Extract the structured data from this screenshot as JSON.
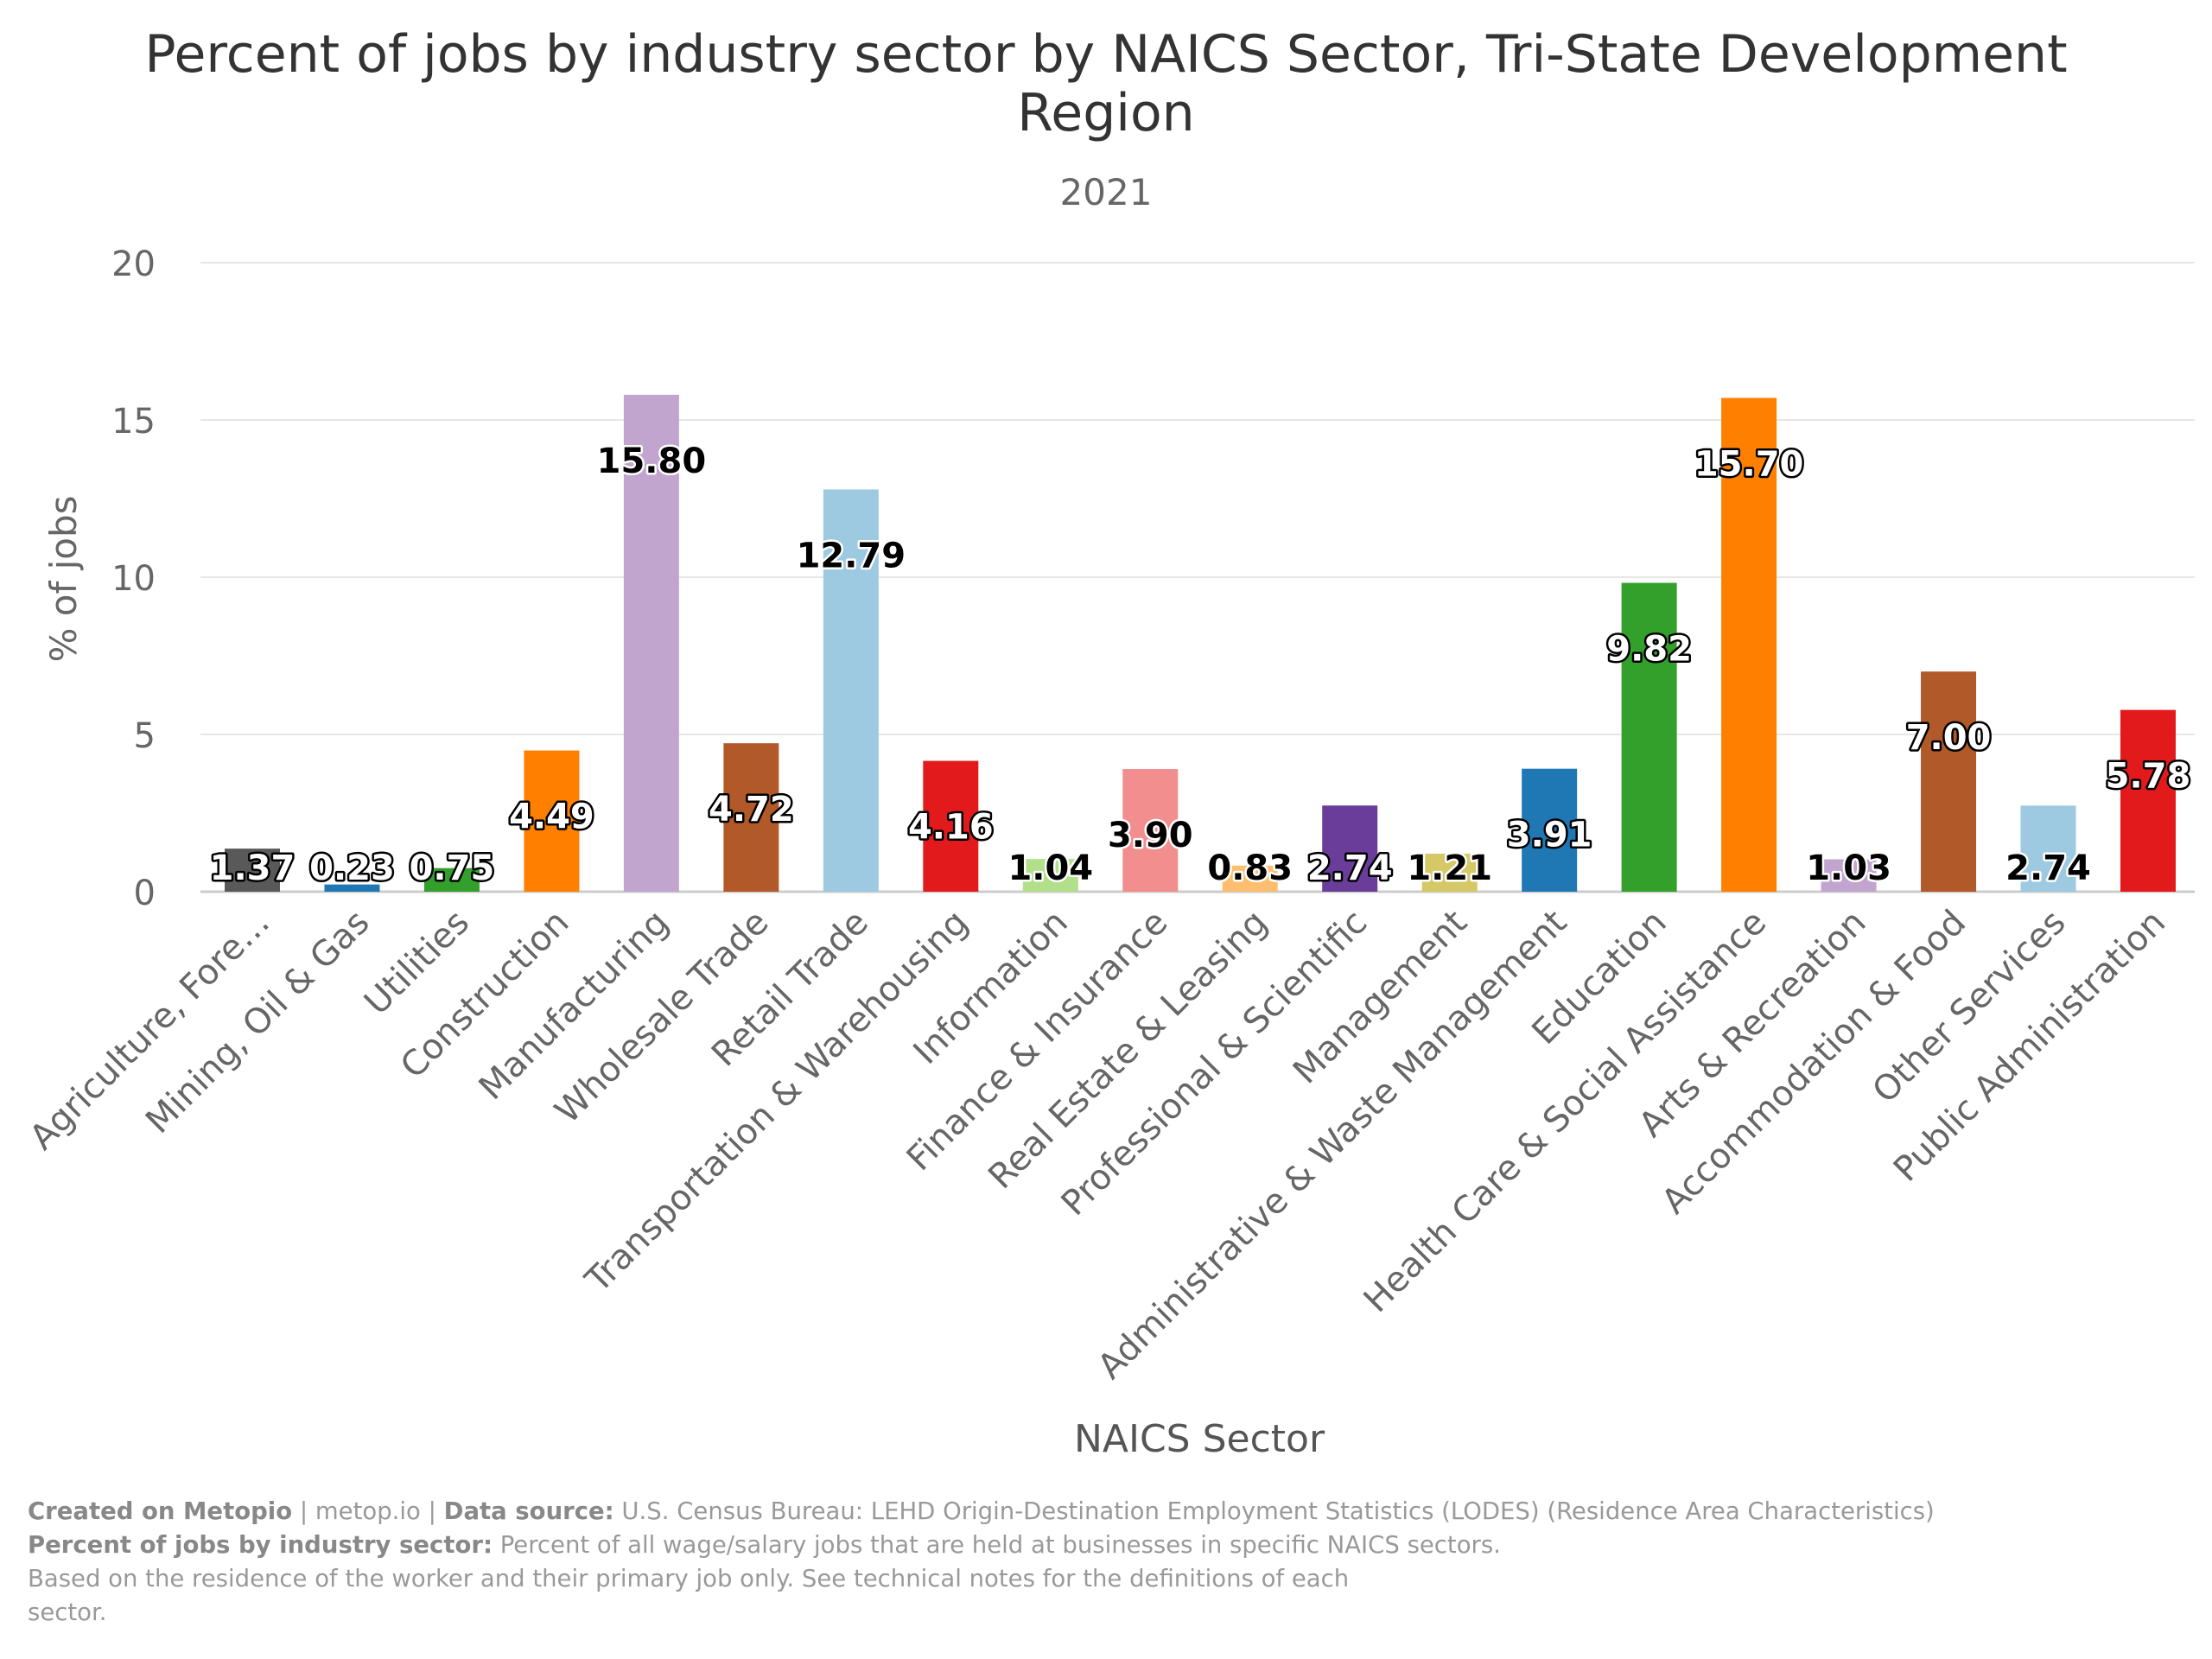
{
  "title_line1": "Percent of jobs by industry sector by NAICS Sector, Tri-State Development",
  "title_line2": "Region",
  "subtitle": "2021",
  "footer": {
    "created_label": "Created on Metopio",
    "separator": "|",
    "site": "metop.io",
    "source_label": "Data source:",
    "source_text": "U.S. Census Bureau: LEHD Origin-Destination Employment Statistics (LODES) (Residence Area Characteristics)",
    "definition_label": "Percent of jobs by industry sector:",
    "definition_text": "Percent of all wage/salary jobs that are held at businesses in specific NAICS sectors.",
    "definition_line3": "Based on the residence of the worker and their primary job only. See technical notes for the definitions of each",
    "definition_line4": "sector."
  },
  "chart_data": {
    "type": "bar",
    "title": "Percent of jobs by industry sector by NAICS Sector, Tri-State Development Region",
    "subtitle": "2021",
    "xlabel": "NAICS Sector",
    "ylabel": "% of jobs",
    "ylim": [
      0,
      20
    ],
    "yticks": [
      "0",
      "5",
      "10",
      "15",
      "20"
    ],
    "grid": true,
    "legend": "none",
    "categories": [
      "Agriculture, Fore…",
      "Mining, Oil & Gas",
      "Utilities",
      "Construction",
      "Manufacturing",
      "Wholesale Trade",
      "Retail Trade",
      "Transportation & Warehousing",
      "Information",
      "Finance & Insurance",
      "Real Estate & Leasing",
      "Professional & Scientific",
      "Management",
      "Administrative & Waste Management",
      "Education",
      "Health Care & Social Assistance",
      "Arts & Recreation",
      "Accommodation & Food",
      "Other Services",
      "Public Administration"
    ],
    "values": [
      1.37,
      0.23,
      0.75,
      4.49,
      15.8,
      4.72,
      12.79,
      4.16,
      1.04,
      3.9,
      0.83,
      2.74,
      1.21,
      3.91,
      9.82,
      15.7,
      1.03,
      7.0,
      2.74,
      5.78
    ],
    "labels": [
      "1.37",
      "0.23",
      "0.75",
      "4.49",
      "15.80",
      "4.72",
      "12.79",
      "4.16",
      "1.04",
      "3.90",
      "0.83",
      "2.74",
      "1.21",
      "3.91",
      "9.82",
      "15.70",
      "1.03",
      "7.00",
      "2.74",
      "5.78"
    ],
    "colors": [
      "#595959",
      "#1f78b4",
      "#33a02c",
      "#ff7f00",
      "#c2a5cf",
      "#b15928",
      "#9ecae1",
      "#e31a1c",
      "#b2df8a",
      "#f28e8e",
      "#fdbf6f",
      "#6a3d9a",
      "#d4c867",
      "#1f78b4",
      "#33a02c",
      "#ff7f00",
      "#c2a5cf",
      "#b15928",
      "#9ecae1",
      "#e31a1c"
    ],
    "label_dark_text": [
      false,
      false,
      false,
      false,
      true,
      false,
      true,
      false,
      true,
      true,
      true,
      false,
      true,
      false,
      false,
      false,
      true,
      false,
      true,
      false
    ]
  }
}
